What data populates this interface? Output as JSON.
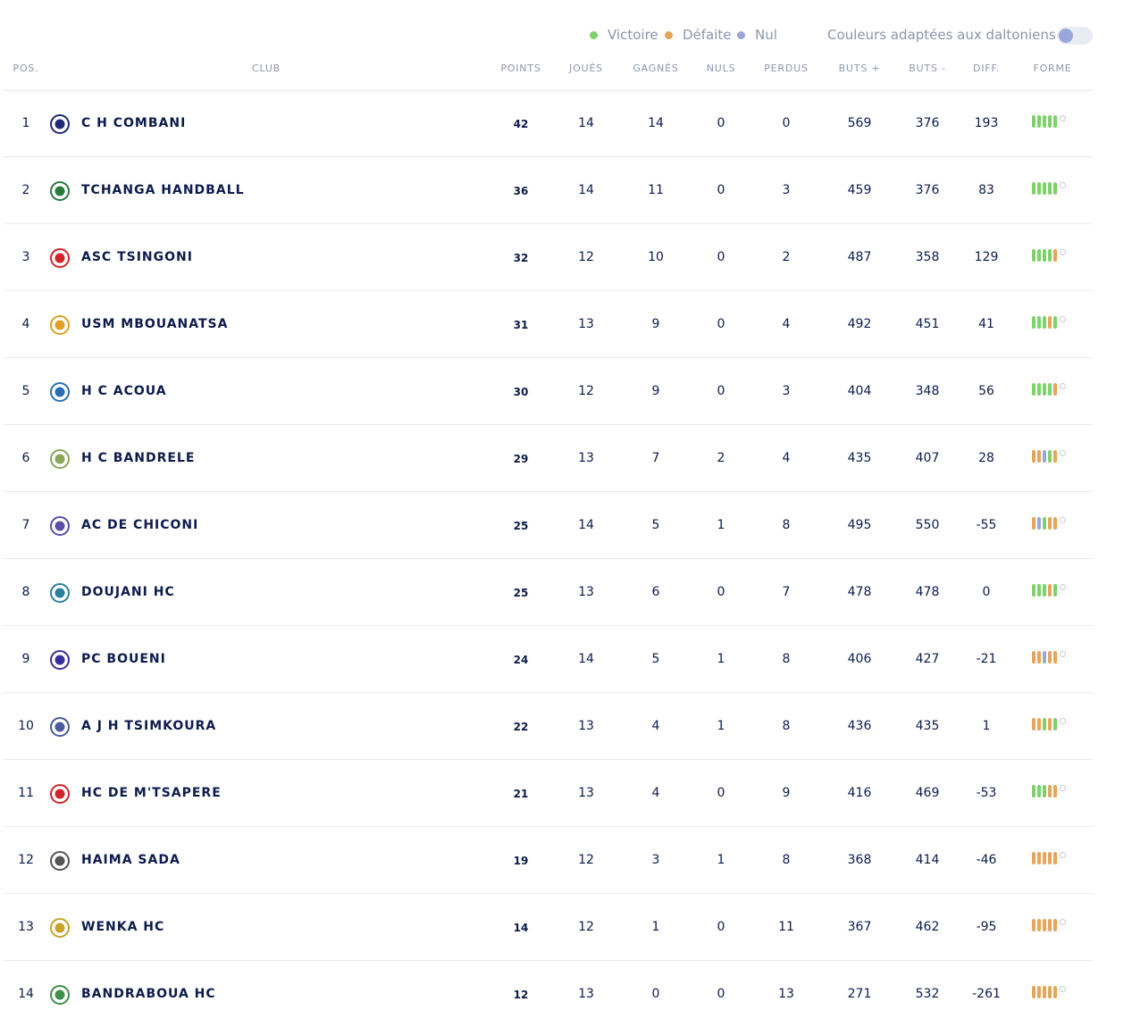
{
  "legend": {
    "victory_label": "Victoire",
    "defeat_label": "Défaite",
    "draw_label": "Nul",
    "colorblind_label": "Couleurs adaptées aux daltoniens"
  },
  "colors": {
    "victory": "#7ed16b",
    "defeat": "#e6a55c",
    "draw": "#9aa6db",
    "text_primary": "#0d1b4c",
    "text_muted": "#8f97aa"
  },
  "headers": {
    "pos": "POS.",
    "club": "CLUB",
    "points": "POINTS",
    "played": "JOUÉS",
    "won": "GAGNÉS",
    "draws": "NULS",
    "lost": "PERDUS",
    "goals_for": "BUTS +",
    "goals_against": "BUTS -",
    "diff": "DIFF.",
    "form": "FORME"
  },
  "rows": [
    {
      "pos": "1",
      "club": "C H COMBANI",
      "points": "42",
      "played": "14",
      "won": "14",
      "draws": "0",
      "lost": "0",
      "gf": "569",
      "ga": "376",
      "diff": "193",
      "form": [
        "W",
        "W",
        "W",
        "W",
        "W"
      ],
      "logo_icon": "ch-combani-crest-icon"
    },
    {
      "pos": "2",
      "club": "TCHANGA HANDBALL",
      "points": "36",
      "played": "14",
      "won": "11",
      "draws": "0",
      "lost": "3",
      "gf": "459",
      "ga": "376",
      "diff": "83",
      "form": [
        "W",
        "W",
        "W",
        "W",
        "W"
      ],
      "logo_icon": "tchanga-crest-icon"
    },
    {
      "pos": "3",
      "club": "ASC TSINGONI",
      "points": "32",
      "played": "12",
      "won": "10",
      "draws": "0",
      "lost": "2",
      "gf": "487",
      "ga": "358",
      "diff": "129",
      "form": [
        "W",
        "W",
        "W",
        "W",
        "L"
      ],
      "logo_icon": "asc-tsingoni-crest-icon"
    },
    {
      "pos": "4",
      "club": "USM MBOUANATSA",
      "points": "31",
      "played": "13",
      "won": "9",
      "draws": "0",
      "lost": "4",
      "gf": "492",
      "ga": "451",
      "diff": "41",
      "form": [
        "W",
        "W",
        "W",
        "L",
        "W"
      ],
      "logo_icon": "usm-mbouanatsa-crest-icon"
    },
    {
      "pos": "5",
      "club": "H C ACOUA",
      "points": "30",
      "played": "12",
      "won": "9",
      "draws": "0",
      "lost": "3",
      "gf": "404",
      "ga": "348",
      "diff": "56",
      "form": [
        "W",
        "W",
        "W",
        "W",
        "L"
      ],
      "logo_icon": "hc-acoua-crest-icon"
    },
    {
      "pos": "6",
      "club": "H C BANDRELE",
      "points": "29",
      "played": "13",
      "won": "7",
      "draws": "2",
      "lost": "4",
      "gf": "435",
      "ga": "407",
      "diff": "28",
      "form": [
        "L",
        "L",
        "D",
        "W",
        "L"
      ],
      "logo_icon": "hc-bandrele-crest-icon"
    },
    {
      "pos": "7",
      "club": "AC DE CHICONI",
      "points": "25",
      "played": "14",
      "won": "5",
      "draws": "1",
      "lost": "8",
      "gf": "495",
      "ga": "550",
      "diff": "-55",
      "form": [
        "L",
        "D",
        "W",
        "L",
        "L"
      ],
      "logo_icon": "ac-chiconi-crest-icon"
    },
    {
      "pos": "8",
      "club": "DOUJANI HC",
      "points": "25",
      "played": "13",
      "won": "6",
      "draws": "0",
      "lost": "7",
      "gf": "478",
      "ga": "478",
      "diff": "0",
      "form": [
        "W",
        "W",
        "W",
        "L",
        "W"
      ],
      "logo_icon": "doujani-crest-icon"
    },
    {
      "pos": "9",
      "club": "PC BOUENI",
      "points": "24",
      "played": "14",
      "won": "5",
      "draws": "1",
      "lost": "8",
      "gf": "406",
      "ga": "427",
      "diff": "-21",
      "form": [
        "L",
        "L",
        "D",
        "L",
        "L"
      ],
      "logo_icon": "pc-boueni-crest-icon"
    },
    {
      "pos": "10",
      "club": "A J H TSIMKOURA",
      "points": "22",
      "played": "13",
      "won": "4",
      "draws": "1",
      "lost": "8",
      "gf": "436",
      "ga": "435",
      "diff": "1",
      "form": [
        "L",
        "L",
        "W",
        "L",
        "W"
      ],
      "logo_icon": "ajh-tsimkoura-crest-icon"
    },
    {
      "pos": "11",
      "club": "HC DE M'TSAPERE",
      "points": "21",
      "played": "13",
      "won": "4",
      "draws": "0",
      "lost": "9",
      "gf": "416",
      "ga": "469",
      "diff": "-53",
      "form": [
        "W",
        "W",
        "W",
        "L",
        "L"
      ],
      "logo_icon": "hc-mtsapere-crest-icon"
    },
    {
      "pos": "12",
      "club": "HAIMA SADA",
      "points": "19",
      "played": "12",
      "won": "3",
      "draws": "1",
      "lost": "8",
      "gf": "368",
      "ga": "414",
      "diff": "-46",
      "form": [
        "L",
        "L",
        "L",
        "L",
        "L"
      ],
      "logo_icon": "haima-sada-crest-icon"
    },
    {
      "pos": "13",
      "club": "WENKA HC",
      "points": "14",
      "played": "12",
      "won": "1",
      "draws": "0",
      "lost": "11",
      "gf": "367",
      "ga": "462",
      "diff": "-95",
      "form": [
        "L",
        "L",
        "L",
        "L",
        "L"
      ],
      "logo_icon": "wenka-crest-icon"
    },
    {
      "pos": "14",
      "club": "BANDRABOUA HC",
      "points": "12",
      "played": "13",
      "won": "0",
      "draws": "0",
      "lost": "13",
      "gf": "271",
      "ga": "532",
      "diff": "-261",
      "form": [
        "L",
        "L",
        "L",
        "L",
        "L"
      ],
      "logo_icon": "bandraboua-crest-icon"
    }
  ]
}
